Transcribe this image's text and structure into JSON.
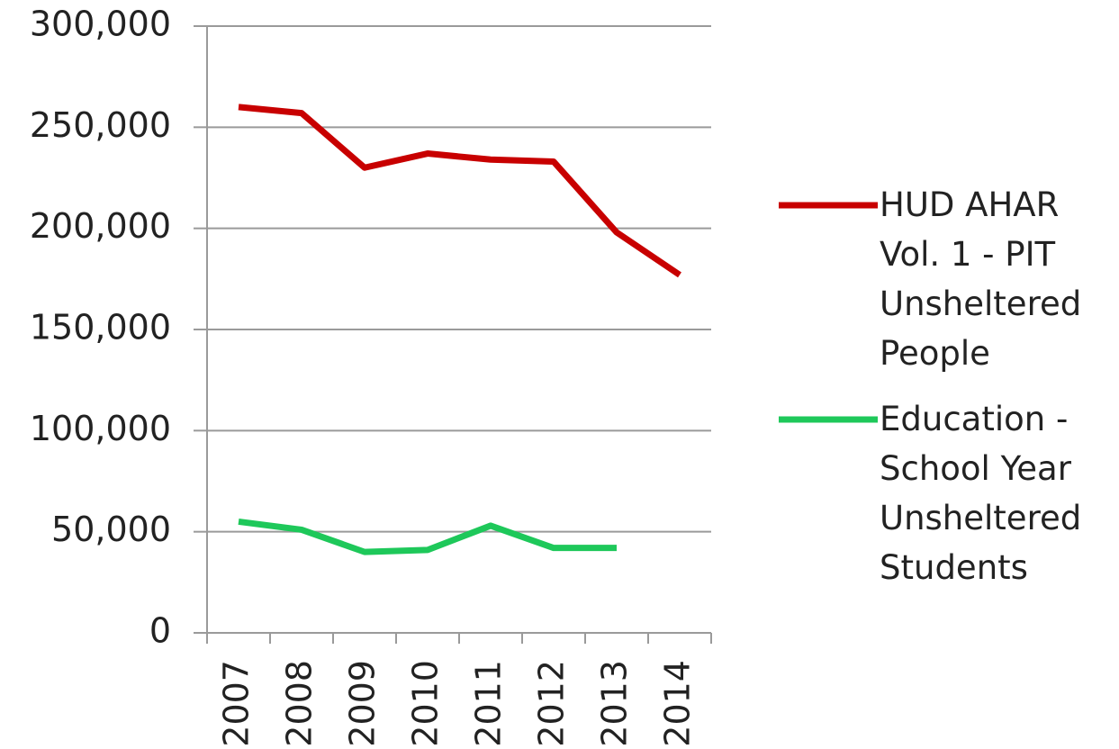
{
  "chart_data": {
    "type": "line",
    "categories": [
      "2007",
      "2008",
      "2009",
      "2010",
      "2011",
      "2012",
      "2013",
      "2014"
    ],
    "series": [
      {
        "name": "HUD AHAR Vol. 1 - PIT Unsheltered People",
        "color": "#c80000",
        "values": [
          260000,
          257000,
          230000,
          237000,
          234000,
          233000,
          198000,
          177000
        ]
      },
      {
        "name": "Education - School Year Unsheltered Students",
        "color": "#1ec85a",
        "values": [
          55000,
          51000,
          40000,
          41000,
          53000,
          42000,
          42000,
          null
        ]
      }
    ],
    "ylim": [
      0,
      300000
    ],
    "yticks": [
      0,
      {
        "value": 50000,
        "label": "50,000"
      },
      {
        "value": 100000,
        "label": "100,000"
      },
      {
        "value": 150000,
        "label": "150,000"
      },
      {
        "value": 200000,
        "label": "200,000"
      },
      {
        "value": 250000,
        "label": "250,000"
      },
      {
        "value": 300000,
        "label": "300,000"
      }
    ],
    "grid": true,
    "legend": "right"
  }
}
